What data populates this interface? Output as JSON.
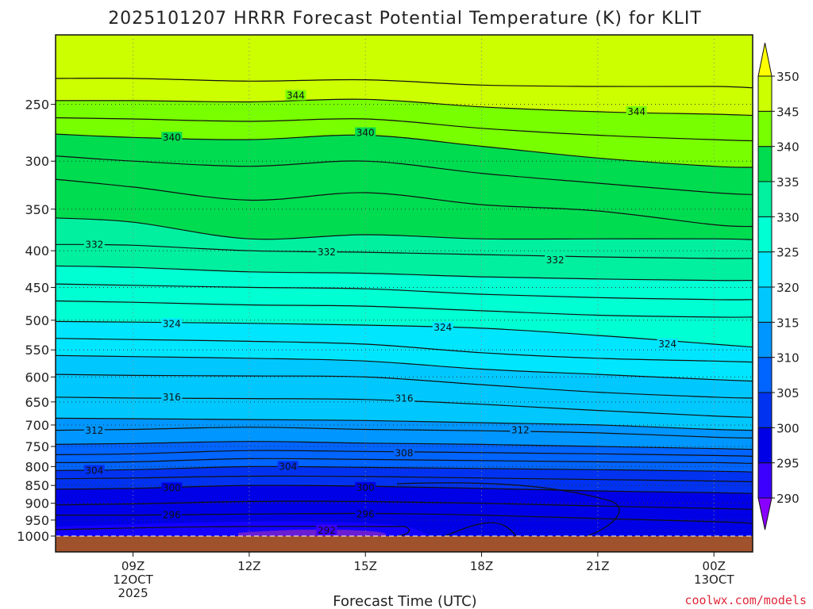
{
  "title": "2025101207 HRRR Forecast Potential Temperature (K) for KLIT",
  "xlabel": "Forecast Time (UTC)",
  "credit": "coolwx.com/models",
  "chart_data": {
    "type": "time-height contour",
    "title": "2025101207 HRRR Forecast Potential Temperature (K) for KLIT",
    "xlabel": "Forecast Time (UTC)",
    "ylabel": "",
    "variable": "Potential Temperature (K)",
    "x_ticks": [
      {
        "label": "09Z",
        "sub": [
          "12OCT",
          "2025"
        ],
        "hour": 9
      },
      {
        "label": "12Z",
        "sub": [],
        "hour": 12
      },
      {
        "label": "15Z",
        "sub": [],
        "hour": 15
      },
      {
        "label": "18Z",
        "sub": [],
        "hour": 18
      },
      {
        "label": "21Z",
        "sub": [],
        "hour": 21
      },
      {
        "label": "00Z",
        "sub": [
          "13OCT"
        ],
        "hour": 24
      }
    ],
    "x_range_hours": [
      7,
      25
    ],
    "y_ticks": [
      250,
      300,
      350,
      400,
      450,
      500,
      550,
      600,
      650,
      700,
      750,
      800,
      850,
      900,
      950,
      1000
    ],
    "y_range_hPa": [
      200,
      1000
    ],
    "y_scale": "log (reversed pressure)",
    "grid": true,
    "colorbar": {
      "levels": [
        290,
        295,
        300,
        305,
        310,
        315,
        320,
        325,
        330,
        335,
        340,
        345,
        350
      ],
      "colors": [
        "#8a00ff",
        "#3c00ff",
        "#0000e6",
        "#0032f0",
        "#0064ff",
        "#0096ff",
        "#00c8ff",
        "#00e6ff",
        "#00ffd2",
        "#00f0a0",
        "#00dc50",
        "#78ff00",
        "#ccff00",
        "#ffff00"
      ]
    },
    "columns_hours": [
      7,
      9,
      12,
      15,
      18,
      21,
      24,
      25
    ],
    "isentropes": [
      {
        "theta": 346,
        "p": [
          230,
          230,
          232,
          231,
          235,
          236,
          236,
          237
        ]
      },
      {
        "theta": 344,
        "p": [
          247,
          247,
          248,
          246,
          252,
          256,
          258,
          259
        ]
      },
      {
        "theta": 342,
        "p": [
          261,
          262,
          264,
          262,
          270,
          276,
          280,
          281
        ]
      },
      {
        "theta": 340,
        "p": [
          275,
          278,
          280,
          276,
          286,
          297,
          305,
          306
        ]
      },
      {
        "theta": 338,
        "p": [
          295,
          300,
          305,
          300,
          312,
          322,
          332,
          334
        ]
      },
      {
        "theta": 336,
        "p": [
          318,
          326,
          340,
          332,
          345,
          352,
          368,
          370
        ]
      },
      {
        "theta": 334,
        "p": [
          360,
          365,
          385,
          380,
          385,
          385,
          385,
          386
        ]
      },
      {
        "theta": 332,
        "p": [
          392,
          393,
          400,
          402,
          405,
          408,
          410,
          410
        ]
      },
      {
        "theta": 330,
        "p": [
          420,
          422,
          428,
          430,
          435,
          438,
          440,
          440
        ]
      },
      {
        "theta": 328,
        "p": [
          445,
          447,
          450,
          452,
          460,
          465,
          468,
          468
        ]
      },
      {
        "theta": 326,
        "p": [
          470,
          472,
          476,
          478,
          485,
          492,
          495,
          495
        ]
      },
      {
        "theta": 324,
        "p": [
          502,
          503,
          505,
          508,
          513,
          525,
          540,
          545
        ]
      },
      {
        "theta": 322,
        "p": [
          530,
          532,
          535,
          540,
          555,
          565,
          570,
          572
        ]
      },
      {
        "theta": 320,
        "p": [
          560,
          562,
          565,
          570,
          585,
          595,
          605,
          608
        ]
      },
      {
        "theta": 318,
        "p": [
          595,
          597,
          598,
          600,
          615,
          630,
          640,
          642
        ]
      },
      {
        "theta": 316,
        "p": [
          640,
          642,
          643,
          645,
          655,
          668,
          680,
          683
        ]
      },
      {
        "theta": 314,
        "p": [
          685,
          686,
          688,
          690,
          695,
          700,
          710,
          712
        ]
      },
      {
        "theta": 312,
        "p": [
          712,
          710,
          705,
          710,
          713,
          718,
          728,
          730
        ]
      },
      {
        "theta": 310,
        "p": [
          745,
          743,
          738,
          742,
          745,
          750,
          755,
          757
        ]
      },
      {
        "theta": 308,
        "p": [
          770,
          768,
          760,
          762,
          765,
          768,
          772,
          774
        ]
      },
      {
        "theta": 306,
        "p": [
          790,
          788,
          780,
          782,
          785,
          788,
          790,
          792
        ]
      },
      {
        "theta": 304,
        "p": [
          810,
          808,
          800,
          802,
          805,
          808,
          812,
          814
        ]
      },
      {
        "theta": 302,
        "p": [
          832,
          830,
          825,
          826,
          830,
          834,
          838,
          840
        ]
      },
      {
        "theta": 300,
        "p": [
          860,
          858,
          850,
          852,
          858,
          865,
          870,
          872
        ]
      },
      {
        "theta": 298,
        "p": [
          905,
          902,
          895,
          895,
          900,
          908,
          915,
          918
        ]
      },
      {
        "theta": 296,
        "p": [
          935,
          935,
          932,
          930,
          935,
          945,
          955,
          960
        ]
      }
    ],
    "contour_labels": [
      {
        "text": "344",
        "hour": 13.2,
        "p": 243
      },
      {
        "text": "344",
        "hour": 22.0,
        "p": 256
      },
      {
        "text": "340",
        "hour": 10.0,
        "p": 278
      },
      {
        "text": "340",
        "hour": 15.0,
        "p": 274
      },
      {
        "text": "332",
        "hour": 8.0,
        "p": 392
      },
      {
        "text": "332",
        "hour": 14.0,
        "p": 402
      },
      {
        "text": "332",
        "hour": 19.9,
        "p": 412
      },
      {
        "text": "324",
        "hour": 10.0,
        "p": 506
      },
      {
        "text": "324",
        "hour": 17.0,
        "p": 512
      },
      {
        "text": "324",
        "hour": 22.8,
        "p": 540
      },
      {
        "text": "316",
        "hour": 10.0,
        "p": 640
      },
      {
        "text": "316",
        "hour": 16.0,
        "p": 643
      },
      {
        "text": "312",
        "hour": 8.0,
        "p": 713
      },
      {
        "text": "312",
        "hour": 19.0,
        "p": 712
      },
      {
        "text": "308",
        "hour": 16.0,
        "p": 766
      },
      {
        "text": "304",
        "hour": 8.0,
        "p": 810
      },
      {
        "text": "304",
        "hour": 13.0,
        "p": 800
      },
      {
        "text": "300",
        "hour": 10.0,
        "p": 857
      },
      {
        "text": "300",
        "hour": 15.0,
        "p": 856
      },
      {
        "text": "296",
        "hour": 10.0,
        "p": 935
      },
      {
        "text": "296",
        "hour": 15.0,
        "p": 932
      },
      {
        "text": "292",
        "hour": 14.0,
        "p": 982
      }
    ]
  }
}
